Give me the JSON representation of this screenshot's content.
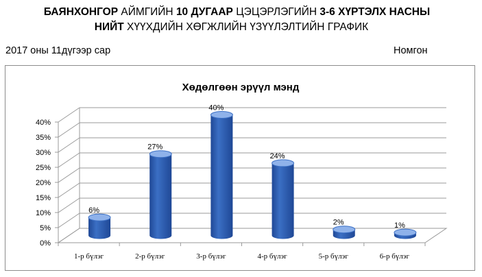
{
  "header": {
    "line1": [
      {
        "text": "БАЯНХОНГОР",
        "bold": true
      },
      {
        "text": " АЙМГИЙН ",
        "bold": false
      },
      {
        "text": "10 ДУГААР",
        "bold": true
      },
      {
        "text": " ЦЭЦЭРЛЭГИЙН ",
        "bold": false
      },
      {
        "text": "3-6 ХҮРТЭЛХ НАСНЫ",
        "bold": true
      }
    ],
    "line2": [
      {
        "text": "НИЙТ",
        "bold": true
      },
      {
        "text": " ХҮҮХДИЙН ХӨГЖЛИЙН ҮЗҮҮЛЭЛТИЙН ГРАФИК",
        "bold": false
      }
    ]
  },
  "meta": {
    "date_text": "2017 оны 11дүгээр сар",
    "author_text": "Номгон"
  },
  "chart_data": {
    "type": "bar",
    "title": "Хөдөлгөөн эрүүл мэнд",
    "categories": [
      "1-р бүлэг",
      "2-р бүлэг",
      "3-р бүлэг",
      "4-р бүлэг",
      "5-р бүлэг",
      "6-р бүлэг"
    ],
    "values": [
      6,
      27,
      40,
      24,
      2,
      1
    ],
    "data_labels": [
      "6%",
      "27%",
      "40%",
      "24%",
      "2%",
      "1%"
    ],
    "y_ticks": [
      "0%",
      "5%",
      "10%",
      "15%",
      "20%",
      "25%",
      "30%",
      "35%",
      "40%"
    ],
    "ylim": [
      0,
      40
    ],
    "grid": true,
    "style": "3d-cylinder",
    "bar_color": "#3b6fc4",
    "bar_color_dark": "#1f4896",
    "bar_color_light": "#8fb2ea",
    "xlabel": "",
    "ylabel": ""
  }
}
